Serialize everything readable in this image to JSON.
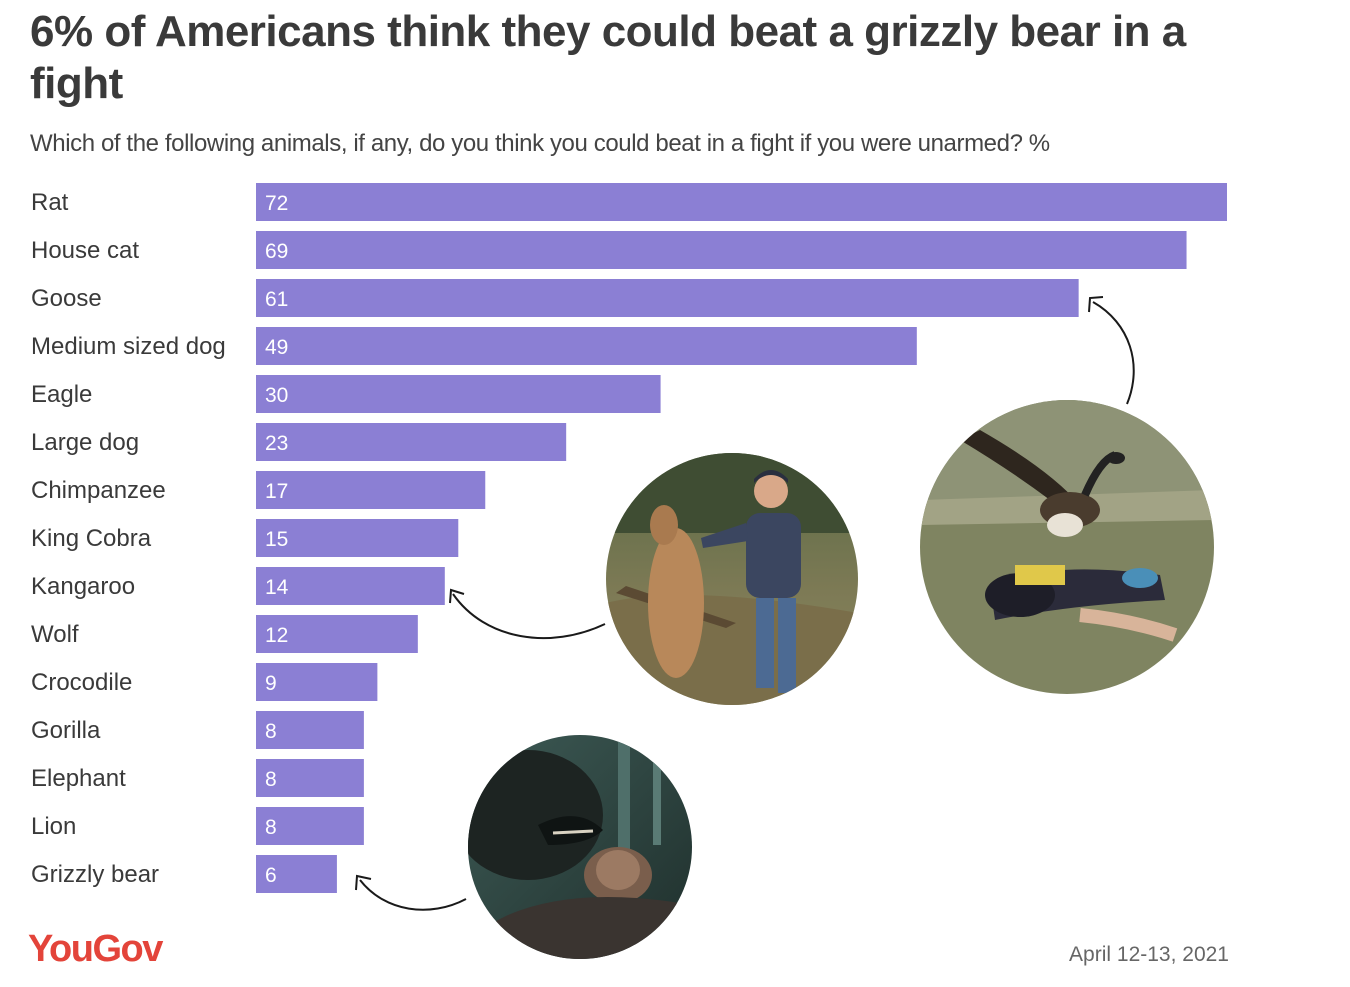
{
  "chart_data": {
    "type": "bar",
    "orientation": "horizontal",
    "title": "6% of Americans think they could beat a grizzly bear in a fight",
    "subtitle": "Which of the following animals, if any, do you think you could beat in a fight if you were unarmed? %",
    "categories": [
      "Rat",
      "House cat",
      "Goose",
      "Medium sized dog",
      "Eagle",
      "Large dog",
      "Chimpanzee",
      "King Cobra",
      "Kangaroo",
      "Wolf",
      "Crocodile",
      "Gorilla",
      "Elephant",
      "Lion",
      "Grizzly bear"
    ],
    "values": [
      72,
      69,
      61,
      49,
      30,
      23,
      17,
      15,
      14,
      12,
      9,
      8,
      8,
      8,
      6
    ],
    "xlim": [
      0,
      72
    ],
    "grid": false,
    "data_labels": "inside-bar-left",
    "bar_color": "#8b7fd4"
  },
  "brand": {
    "logo_text": "YouGov",
    "logo_color": "#e3443a"
  },
  "footer": {
    "date": "April 12-13, 2021"
  },
  "icons": {
    "kangaroo_photo": "kangaroo-fight-photo",
    "goose_photo": "goose-attack-photo",
    "bear_photo": "grizzly-bear-attack-photo"
  }
}
